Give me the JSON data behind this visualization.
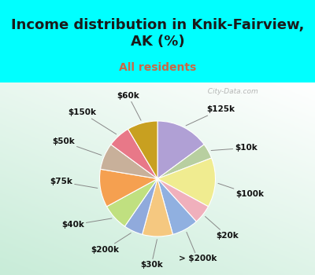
{
  "title": "Income distribution in Knik-Fairview,\nAK (%)",
  "subtitle": "All residents",
  "title_fontsize": 13,
  "subtitle_fontsize": 10,
  "background_color_top": "#00FFFF",
  "background_color_chart": "#d8ede0",
  "watermark": "  City-Data.com",
  "labels": [
    "$125k",
    "$10k",
    "$100k",
    "$20k",
    "> $200k",
    "$30k",
    "$200k",
    "$40k",
    "$75k",
    "$50k",
    "$150k",
    "$60k"
  ],
  "values": [
    14,
    4,
    13,
    5,
    7,
    8,
    5,
    7,
    10,
    7,
    6,
    8
  ],
  "colors": [
    "#b0a0d5",
    "#b8cfa0",
    "#f0ec90",
    "#f0b0bc",
    "#90b0e0",
    "#f5c880",
    "#90aadc",
    "#c0e080",
    "#f5a050",
    "#c8b09a",
    "#e87888",
    "#c8a020"
  ],
  "label_fontsize": 7.5,
  "label_color": "#111111",
  "line_color": "#888888"
}
